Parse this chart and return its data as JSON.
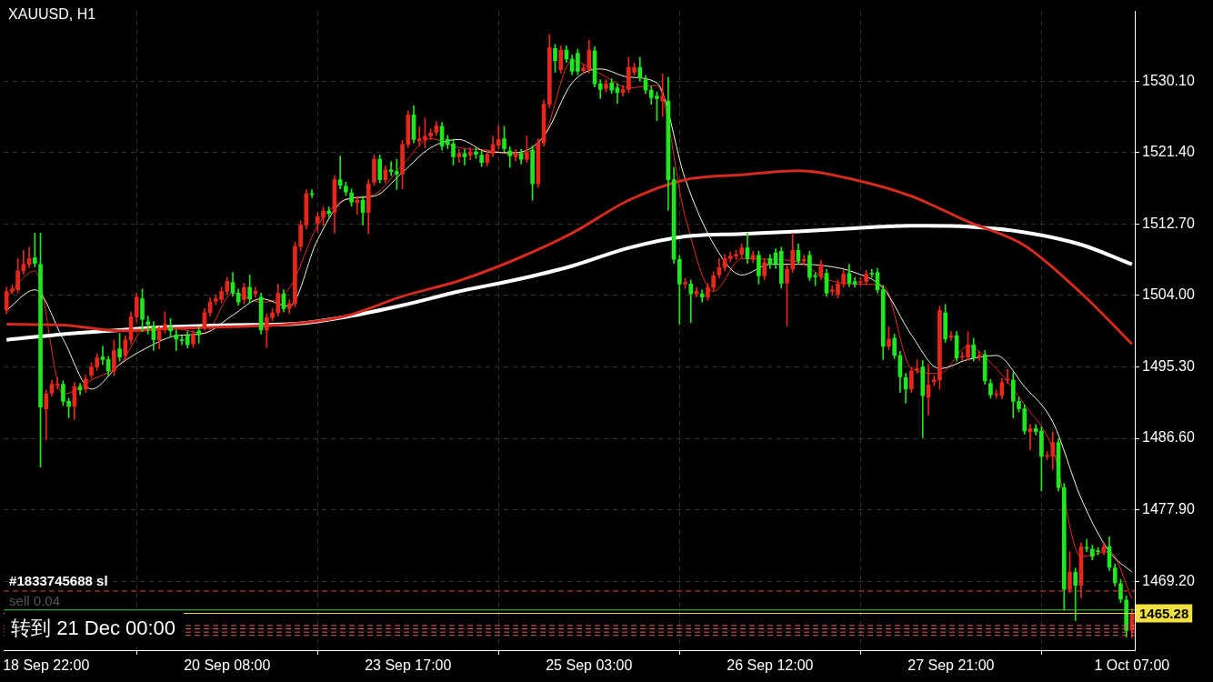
{
  "chart_data": {
    "type": "candlestick",
    "title": "XAUUSD, H1",
    "categories": [
      null,
      null,
      null,
      null,
      null,
      null,
      null,
      "18 Sep 22:00",
      null,
      null,
      null,
      null,
      null,
      null,
      null,
      null,
      null,
      null,
      null,
      null,
      null,
      null,
      null,
      null,
      null,
      null,
      null,
      null,
      null,
      null,
      null,
      null,
      null,
      null,
      null,
      null,
      null,
      null,
      null,
      "20 Sep 08:00",
      null,
      null,
      null,
      null,
      null,
      null,
      null,
      null,
      null,
      null,
      null,
      null,
      null,
      null,
      null,
      null,
      null,
      null,
      null,
      null,
      null,
      null,
      null,
      null,
      null,
      null,
      null,
      null,
      null,
      null,
      null,
      "23 Sep 17:00",
      null,
      null,
      null,
      null,
      null,
      null,
      null,
      null,
      null,
      null,
      null,
      null,
      null,
      null,
      null,
      null,
      null,
      null,
      null,
      null,
      null,
      null,
      null,
      null,
      null,
      null,
      null,
      null,
      null,
      null,
      null,
      "25 Sep 03:00",
      null,
      null,
      null,
      null,
      null,
      null,
      null,
      null,
      null,
      null,
      null,
      null,
      null,
      null,
      null,
      null,
      null,
      null,
      null,
      null,
      null,
      null,
      null,
      null,
      null,
      null,
      null,
      null,
      null,
      null,
      null,
      "26 Sep 12:00",
      null,
      null,
      null,
      null,
      null,
      null,
      null,
      null,
      null,
      null,
      null,
      null,
      null,
      null,
      null,
      null,
      null,
      null,
      null,
      null,
      null,
      null,
      null,
      null,
      null,
      null,
      null,
      null,
      null,
      null,
      null,
      "27 Sep 21:00",
      null,
      null,
      null,
      null,
      null,
      null,
      null,
      null,
      null,
      null,
      null,
      null,
      null,
      null,
      null,
      null,
      null,
      null,
      null,
      null,
      null,
      null,
      null,
      null,
      null,
      null,
      null,
      null,
      null,
      null,
      null,
      "1 Oct 07:00"
    ],
    "ohlc": [
      [
        1502.2,
        1505.0,
        1501.8,
        1504.5
      ],
      [
        1504.5,
        1505.3,
        1504.2,
        1504.8
      ],
      [
        1504.7,
        1508.5,
        1504.3,
        1507.0
      ],
      [
        1507.0,
        1509.5,
        1506.6,
        1507.8
      ],
      [
        1507.8,
        1509.9,
        1507.4,
        1508.5
      ],
      [
        1508.6,
        1511.6,
        1507.5,
        1507.9
      ],
      [
        1507.8,
        1511.6,
        1483.1,
        1490.4
      ],
      [
        1490.2,
        1492.5,
        1486.4,
        1492.0
      ],
      [
        1492.1,
        1493.7,
        1491.7,
        1493.2
      ],
      [
        1493.1,
        1494.0,
        1492.6,
        1493.2
      ],
      [
        1493.2,
        1493.6,
        1490.6,
        1491.1
      ],
      [
        1491.1,
        1491.5,
        1489.1,
        1490.5
      ],
      [
        1490.5,
        1493.4,
        1488.9,
        1492.9
      ],
      [
        1492.9,
        1493.3,
        1491.9,
        1492.5
      ],
      [
        1492.6,
        1494.3,
        1492.2,
        1493.8
      ],
      [
        1494.3,
        1495.8,
        1493.9,
        1495.3
      ],
      [
        1495.3,
        1496.9,
        1494.9,
        1496.4
      ],
      [
        1496.5,
        1497.8,
        1495.6,
        1496.2
      ],
      [
        1496.2,
        1496.6,
        1494.2,
        1494.8
      ],
      [
        1494.8,
        1498.6,
        1494.3,
        1497.3
      ],
      [
        1497.5,
        1499.4,
        1496.0,
        1496.5
      ],
      [
        1496.7,
        1499.1,
        1496.2,
        1498.6
      ],
      [
        1498.6,
        1502.0,
        1498.1,
        1501.4
      ],
      [
        1501.4,
        1504.3,
        1500.8,
        1503.8
      ],
      [
        1503.6,
        1504.8,
        1499.6,
        1501.1
      ],
      [
        1500.8,
        1501.5,
        1499.3,
        1500.5
      ],
      [
        1500.3,
        1500.8,
        1497.3,
        1498.6
      ],
      [
        1498.6,
        1500.2,
        1497.5,
        1499.7
      ],
      [
        1499.8,
        1502.0,
        1499.4,
        1500.5
      ],
      [
        1500.2,
        1501.2,
        1498.9,
        1499.7
      ],
      [
        1499.2,
        1499.8,
        1497.3,
        1498.7
      ],
      [
        1498.6,
        1499.1,
        1498.0,
        1498.5
      ],
      [
        1499.1,
        1499.6,
        1497.6,
        1498.0
      ],
      [
        1498.1,
        1499.7,
        1497.7,
        1499.2
      ],
      [
        1499.7,
        1500.2,
        1498.2,
        1499.2
      ],
      [
        1500.2,
        1502.4,
        1499.8,
        1501.9
      ],
      [
        1501.9,
        1503.7,
        1501.5,
        1503.2
      ],
      [
        1503.3,
        1504.1,
        1502.9,
        1503.6
      ],
      [
        1503.5,
        1505.0,
        1503.1,
        1504.5
      ],
      [
        1504.5,
        1506.2,
        1504.1,
        1505.7
      ],
      [
        1505.6,
        1506.8,
        1503.9,
        1504.3
      ],
      [
        1504.3,
        1504.8,
        1502.8,
        1503.2
      ],
      [
        1503.5,
        1505.5,
        1503.0,
        1505.0
      ],
      [
        1505.0,
        1506.5,
        1503.1,
        1503.6
      ],
      [
        1504.2,
        1505.0,
        1503.8,
        1504.5
      ],
      [
        1503.8,
        1504.3,
        1499.3,
        1499.8
      ],
      [
        1499.8,
        1501.8,
        1497.7,
        1501.3
      ],
      [
        1501.3,
        1502.4,
        1500.9,
        1501.9
      ],
      [
        1501.9,
        1505.4,
        1501.5,
        1504.3
      ],
      [
        1504.2,
        1504.7,
        1502.0,
        1502.4
      ],
      [
        1502.4,
        1503.5,
        1501.8,
        1503.0
      ],
      [
        1503.0,
        1510.5,
        1502.6,
        1510.0
      ],
      [
        1510.0,
        1513.1,
        1509.4,
        1512.6
      ],
      [
        1512.6,
        1516.9,
        1512.1,
        1516.4
      ],
      [
        1516.4,
        1516.9,
        1515.9,
        1516.3
      ],
      [
        1512.8,
        1514.1,
        1511.8,
        1513.6
      ],
      [
        1513.5,
        1514.8,
        1512.5,
        1514.3
      ],
      [
        1514.3,
        1514.8,
        1513.6,
        1514.0
      ],
      [
        1514.1,
        1518.6,
        1511.6,
        1518.1
      ],
      [
        1518.1,
        1521.0,
        1517.0,
        1517.4
      ],
      [
        1517.3,
        1517.8,
        1516.2,
        1516.6
      ],
      [
        1516.5,
        1517.0,
        1514.9,
        1515.4
      ],
      [
        1515.3,
        1516.1,
        1513.9,
        1515.6
      ],
      [
        1515.6,
        1516.1,
        1512.6,
        1514.1
      ],
      [
        1514.1,
        1518.1,
        1511.5,
        1517.6
      ],
      [
        1517.8,
        1521.1,
        1517.4,
        1520.6
      ],
      [
        1520.6,
        1521.1,
        1517.7,
        1518.1
      ],
      [
        1518.1,
        1519.8,
        1517.7,
        1519.3
      ],
      [
        1519.3,
        1520.3,
        1518.6,
        1519.1
      ],
      [
        1519.1,
        1520.6,
        1516.9,
        1518.8
      ],
      [
        1518.8,
        1522.9,
        1517.0,
        1522.4
      ],
      [
        1522.4,
        1526.5,
        1522.0,
        1526.0
      ],
      [
        1526.0,
        1527.1,
        1522.6,
        1523.0
      ],
      [
        1522.8,
        1524.6,
        1522.2,
        1523.1
      ],
      [
        1523.0,
        1525.6,
        1522.0,
        1523.4
      ],
      [
        1523.4,
        1524.3,
        1523.0,
        1523.8
      ],
      [
        1523.9,
        1525.2,
        1523.5,
        1524.7
      ],
      [
        1524.6,
        1525.1,
        1521.7,
        1522.2
      ],
      [
        1523.0,
        1523.5,
        1521.9,
        1522.4
      ],
      [
        1522.5,
        1523.0,
        1519.9,
        1520.9
      ],
      [
        1520.9,
        1521.8,
        1520.2,
        1521.3
      ],
      [
        1521.3,
        1521.8,
        1519.9,
        1520.9
      ],
      [
        1521.1,
        1522.0,
        1520.5,
        1521.5
      ],
      [
        1521.5,
        1522.0,
        1520.7,
        1521.2
      ],
      [
        1521.1,
        1521.6,
        1519.7,
        1520.2
      ],
      [
        1520.2,
        1521.7,
        1519.8,
        1521.2
      ],
      [
        1521.3,
        1523.4,
        1520.9,
        1522.4
      ],
      [
        1522.3,
        1524.7,
        1521.9,
        1523.0
      ],
      [
        1523.1,
        1524.6,
        1521.5,
        1521.9
      ],
      [
        1521.6,
        1522.1,
        1519.6,
        1521.0
      ],
      [
        1520.9,
        1521.8,
        1520.4,
        1521.3
      ],
      [
        1521.3,
        1521.8,
        1520.0,
        1520.6
      ],
      [
        1520.6,
        1523.4,
        1520.2,
        1521.4
      ],
      [
        1521.7,
        1522.2,
        1515.6,
        1517.6
      ],
      [
        1517.6,
        1523.1,
        1517.2,
        1522.6
      ],
      [
        1522.6,
        1527.8,
        1522.2,
        1527.3
      ],
      [
        1527.3,
        1535.8,
        1526.9,
        1534.2
      ],
      [
        1534.1,
        1534.6,
        1531.2,
        1532.6
      ],
      [
        1531.5,
        1534.4,
        1531.1,
        1533.9
      ],
      [
        1533.9,
        1534.4,
        1532.4,
        1532.8
      ],
      [
        1532.8,
        1533.3,
        1530.9,
        1531.3
      ],
      [
        1533.5,
        1534.0,
        1530.9,
        1531.3
      ],
      [
        1531.4,
        1532.2,
        1531.0,
        1531.7
      ],
      [
        1531.5,
        1535.1,
        1531.1,
        1533.9
      ],
      [
        1533.8,
        1534.3,
        1529.4,
        1529.8
      ],
      [
        1529.8,
        1530.3,
        1528.0,
        1529.1
      ],
      [
        1529.2,
        1530.3,
        1528.8,
        1529.8
      ],
      [
        1529.9,
        1530.4,
        1528.6,
        1529.0
      ],
      [
        1529.3,
        1529.8,
        1527.4,
        1528.7
      ],
      [
        1528.7,
        1529.6,
        1528.3,
        1529.1
      ],
      [
        1529.1,
        1533.0,
        1528.7,
        1531.8
      ],
      [
        1531.2,
        1532.3,
        1530.8,
        1531.8
      ],
      [
        1531.8,
        1533.0,
        1530.1,
        1530.5
      ],
      [
        1530.3,
        1530.8,
        1528.6,
        1529.0
      ],
      [
        1529.0,
        1529.5,
        1527.3,
        1528.1
      ],
      [
        1528.3,
        1528.8,
        1525.3,
        1528.0
      ],
      [
        1527.7,
        1531.0,
        1525.8,
        1528.3
      ],
      [
        1527.7,
        1530.6,
        1514.4,
        1518.1
      ],
      [
        1518.1,
        1519.6,
        1507.9,
        1508.4
      ],
      [
        1508.4,
        1508.9,
        1500.5,
        1505.4
      ],
      [
        1505.4,
        1506.1,
        1504.9,
        1505.6
      ],
      [
        1505.4,
        1505.9,
        1500.7,
        1504.2
      ],
      [
        1504.2,
        1505.0,
        1503.8,
        1504.5
      ],
      [
        1504.2,
        1504.7,
        1503.2,
        1503.8
      ],
      [
        1503.8,
        1505.5,
        1503.4,
        1505.0
      ],
      [
        1505.0,
        1506.9,
        1504.6,
        1506.4
      ],
      [
        1506.5,
        1508.5,
        1506.1,
        1507.4
      ],
      [
        1507.4,
        1509.0,
        1507.0,
        1508.5
      ],
      [
        1508.5,
        1509.3,
        1508.1,
        1508.8
      ],
      [
        1508.8,
        1509.5,
        1508.4,
        1509.0
      ],
      [
        1509.0,
        1510.3,
        1508.6,
        1509.8
      ],
      [
        1509.8,
        1511.6,
        1507.9,
        1508.5
      ],
      [
        1508.4,
        1509.4,
        1508.0,
        1508.9
      ],
      [
        1508.9,
        1509.4,
        1505.4,
        1506.4
      ],
      [
        1506.4,
        1508.5,
        1505.9,
        1508.0
      ],
      [
        1508.5,
        1509.0,
        1507.3,
        1507.8
      ],
      [
        1509.2,
        1509.7,
        1507.3,
        1507.9
      ],
      [
        1509.4,
        1509.9,
        1504.9,
        1505.5
      ],
      [
        1505.5,
        1507.7,
        1500.3,
        1507.2
      ],
      [
        1507.2,
        1511.6,
        1506.8,
        1509.5
      ],
      [
        1509.5,
        1510.3,
        1507.8,
        1508.2
      ],
      [
        1508.2,
        1508.9,
        1507.7,
        1508.4
      ],
      [
        1508.9,
        1509.4,
        1505.8,
        1506.2
      ],
      [
        1506.4,
        1506.8,
        1505.2,
        1506.3
      ],
      [
        1506.3,
        1508.3,
        1505.9,
        1507.8
      ],
      [
        1506.7,
        1507.2,
        1503.9,
        1504.3
      ],
      [
        1504.5,
        1505.2,
        1504.1,
        1504.7
      ],
      [
        1504.1,
        1505.9,
        1503.7,
        1505.4
      ],
      [
        1505.4,
        1507.1,
        1505.0,
        1506.6
      ],
      [
        1506.7,
        1507.8,
        1505.1,
        1505.5
      ],
      [
        1505.7,
        1506.2,
        1505.0,
        1505.4
      ],
      [
        1505.6,
        1506.2,
        1505.2,
        1505.7
      ],
      [
        1505.7,
        1507.1,
        1505.3,
        1506.6
      ],
      [
        1506.7,
        1507.2,
        1506.2,
        1506.6
      ],
      [
        1506.8,
        1507.3,
        1504.3,
        1504.7
      ],
      [
        1504.7,
        1505.2,
        1496.2,
        1497.8
      ],
      [
        1497.8,
        1500.2,
        1497.4,
        1498.7
      ],
      [
        1498.8,
        1499.3,
        1496.3,
        1496.7
      ],
      [
        1496.7,
        1497.2,
        1492.2,
        1494.1
      ],
      [
        1494.0,
        1494.5,
        1490.9,
        1492.6
      ],
      [
        1492.6,
        1495.3,
        1492.2,
        1494.8
      ],
      [
        1494.9,
        1496.2,
        1494.5,
        1495.1
      ],
      [
        1495.3,
        1496.1,
        1486.7,
        1491.8
      ],
      [
        1491.6,
        1495.6,
        1489.4,
        1493.1
      ],
      [
        1493.5,
        1494.2,
        1493.0,
        1493.7
      ],
      [
        1493.7,
        1502.7,
        1492.6,
        1502.2
      ],
      [
        1501.9,
        1502.9,
        1498.3,
        1498.7
      ],
      [
        1498.9,
        1499.6,
        1498.5,
        1499.1
      ],
      [
        1499.1,
        1499.6,
        1496.0,
        1496.4
      ],
      [
        1496.5,
        1497.1,
        1496.1,
        1496.6
      ],
      [
        1496.5,
        1499.6,
        1496.1,
        1498.0
      ],
      [
        1498.0,
        1498.8,
        1496.0,
        1496.4
      ],
      [
        1496.5,
        1497.2,
        1496.1,
        1496.7
      ],
      [
        1496.8,
        1497.3,
        1493.2,
        1493.6
      ],
      [
        1493.3,
        1493.8,
        1491.5,
        1491.9
      ],
      [
        1491.9,
        1492.5,
        1491.5,
        1492.0
      ],
      [
        1491.8,
        1493.9,
        1491.4,
        1493.4
      ],
      [
        1493.7,
        1495.0,
        1493.3,
        1493.8
      ],
      [
        1493.7,
        1494.6,
        1489.1,
        1491.1
      ],
      [
        1491.1,
        1491.6,
        1489.8,
        1490.2
      ],
      [
        1490.2,
        1490.7,
        1487.1,
        1487.5
      ],
      [
        1487.4,
        1488.3,
        1485.2,
        1487.8
      ],
      [
        1487.8,
        1488.3,
        1487.0,
        1487.4
      ],
      [
        1487.5,
        1488.0,
        1480.2,
        1484.4
      ],
      [
        1484.4,
        1485.0,
        1484.0,
        1484.5
      ],
      [
        1484.4,
        1487.4,
        1482.8,
        1486.1
      ],
      [
        1486.1,
        1486.6,
        1480.2,
        1480.6
      ],
      [
        1480.6,
        1481.1,
        1465.7,
        1468.2
      ],
      [
        1468.2,
        1472.8,
        1467.8,
        1470.3
      ],
      [
        1470.3,
        1470.8,
        1464.4,
        1468.7
      ],
      [
        1468.7,
        1473.9,
        1467.2,
        1473.4
      ],
      [
        1473.3,
        1474.3,
        1472.8,
        1473.2
      ],
      [
        1473.1,
        1473.6,
        1471.8,
        1472.2
      ],
      [
        1472.9,
        1473.3,
        1472.4,
        1472.8
      ],
      [
        1472.8,
        1473.9,
        1472.4,
        1473.4
      ],
      [
        1473.4,
        1474.6,
        1470.5,
        1470.9
      ],
      [
        1470.8,
        1471.3,
        1468.6,
        1469.0
      ],
      [
        1468.9,
        1469.4,
        1466.6,
        1467.0
      ],
      [
        1466.9,
        1467.4,
        1462.4,
        1463.2
      ],
      [
        1463.2,
        1465.9,
        1462.3,
        1465.3
      ]
    ],
    "colors": [
      "#e8271c",
      "#e8271c",
      "#e8271c",
      "#e8271c",
      "#e8271c",
      "#1ee81e",
      "#1ee81e",
      "#e8271c",
      "#e8271c",
      "#e8271c",
      "#1ee81e",
      "#1ee81e",
      "#e8271c",
      "#1ee81e",
      "#e8271c",
      "#e8271c",
      "#e8271c",
      "#1ee81e",
      "#1ee81e",
      "#e8271c",
      "#1ee81e",
      "#e8271c",
      "#e8271c",
      "#e8271c",
      "#1ee81e",
      "#1ee81e",
      "#1ee81e",
      "#e8271c",
      "#e8271c",
      "#1ee81e",
      "#1ee81e",
      "#1ee81e",
      "#1ee81e",
      "#e8271c",
      "#1ee81e",
      "#e8271c",
      "#e8271c",
      "#e8271c",
      "#e8271c",
      "#e8271c",
      "#1ee81e",
      "#1ee81e",
      "#e8271c",
      "#1ee81e",
      "#e8271c",
      "#1ee81e",
      "#e8271c",
      "#e8271c",
      "#e8271c",
      "#1ee81e",
      "#e8271c",
      "#e8271c",
      "#e8271c",
      "#e8271c",
      "#1ee81e",
      "#e8271c",
      "#e8271c",
      "#1ee81e",
      "#e8271c",
      "#1ee81e",
      "#1ee81e",
      "#1ee81e",
      "#e8271c",
      "#1ee81e",
      "#e8271c",
      "#e8271c",
      "#1ee81e",
      "#e8271c",
      "#1ee81e",
      "#1ee81e",
      "#e8271c",
      "#e8271c",
      "#1ee81e",
      "#e8271c",
      "#e8271c",
      "#e8271c",
      "#e8271c",
      "#1ee81e",
      "#1ee81e",
      "#1ee81e",
      "#e8271c",
      "#1ee81e",
      "#e8271c",
      "#1ee81e",
      "#1ee81e",
      "#e8271c",
      "#e8271c",
      "#e8271c",
      "#1ee81e",
      "#1ee81e",
      "#e8271c",
      "#1ee81e",
      "#e8271c",
      "#1ee81e",
      "#e8271c",
      "#e8271c",
      "#e8271c",
      "#1ee81e",
      "#e8271c",
      "#1ee81e",
      "#1ee81e",
      "#1ee81e",
      "#e8271c",
      "#e8271c",
      "#1ee81e",
      "#1ee81e",
      "#e8271c",
      "#1ee81e",
      "#1ee81e",
      "#e8271c",
      "#e8271c",
      "#e8271c",
      "#1ee81e",
      "#1ee81e",
      "#1ee81e",
      "#1ee81e",
      "#e8271c",
      "#1ee81e",
      "#1ee81e",
      "#1ee81e",
      "#e8271c",
      "#1ee81e",
      "#e8271c",
      "#1ee81e",
      "#e8271c",
      "#e8271c",
      "#e8271c",
      "#e8271c",
      "#e8271c",
      "#e8271c",
      "#e8271c",
      "#1ee81e",
      "#e8271c",
      "#1ee81e",
      "#e8271c",
      "#1ee81e",
      "#1ee81e",
      "#1ee81e",
      "#e8271c",
      "#e8271c",
      "#1ee81e",
      "#e8271c",
      "#1ee81e",
      "#1ee81e",
      "#e8271c",
      "#1ee81e",
      "#e8271c",
      "#e8271c",
      "#e8271c",
      "#1ee81e",
      "#1ee81e",
      "#e8271c",
      "#e8271c",
      "#1ee81e",
      "#1ee81e",
      "#1ee81e",
      "#e8271c",
      "#1ee81e",
      "#1ee81e",
      "#1ee81e",
      "#e8271c",
      "#e8271c",
      "#1ee81e",
      "#e8271c",
      "#e8271c",
      "#e8271c",
      "#1ee81e",
      "#e8271c",
      "#1ee81e",
      "#e8271c",
      "#e8271c",
      "#1ee81e",
      "#e8271c",
      "#1ee81e",
      "#1ee81e",
      "#e8271c",
      "#e8271c",
      "#e8271c",
      "#1ee81e",
      "#1ee81e",
      "#1ee81e",
      "#e8271c",
      "#1ee81e",
      "#1ee81e",
      "#e8271c",
      "#e8271c",
      "#1ee81e",
      "#1ee81e",
      "#e8271c",
      "#1ee81e",
      "#e8271c",
      "#1ee81e",
      "#1ee81e",
      "#1ee81e",
      "#e8271c",
      "#1ee81e",
      "#1ee81e",
      "#1ee81e",
      "#1ee81e",
      "#e8271c"
    ],
    "series": [
      {
        "type": "line",
        "color": "#d42a1f",
        "values": [
          1500.5,
          null,
          null,
          null,
          null,
          null,
          null,
          null,
          null,
          null,
          1500.4,
          null,
          null,
          null,
          null,
          null,
          null,
          null,
          null,
          null,
          1499.7,
          null,
          null,
          null,
          null,
          null,
          null,
          null,
          null,
          null,
          1500.0,
          null,
          null,
          null,
          null,
          null,
          null,
          null,
          null,
          null,
          1500.2,
          null,
          null,
          null,
          null,
          null,
          null,
          null,
          null,
          null,
          1500.5,
          null,
          null,
          null,
          null,
          null,
          null,
          null,
          null,
          null,
          1501.5,
          null,
          null,
          null,
          null,
          null,
          null,
          null,
          null,
          null,
          1503.9,
          null,
          null,
          null,
          null,
          null,
          null,
          null,
          null,
          null,
          1505.8,
          null,
          null,
          null,
          null,
          null,
          null,
          null,
          null,
          null,
          1508.4,
          null,
          null,
          null,
          null,
          null,
          null,
          null,
          null,
          null,
          1511.6,
          null,
          null,
          null,
          null,
          null,
          null,
          null,
          null,
          null,
          1515.6,
          null,
          null,
          null,
          null,
          null,
          null,
          null,
          null,
          null,
          1518.1,
          null,
          null,
          null,
          null,
          null,
          null,
          null,
          null,
          null,
          1518.7,
          null,
          null,
          null,
          null,
          null,
          null,
          null,
          null,
          null,
          1519.2,
          null,
          null,
          null,
          null,
          null,
          null,
          null,
          null,
          null,
          1518.1,
          null,
          null,
          null,
          null,
          null,
          null,
          null,
          null,
          null,
          1516.1,
          null,
          null,
          null,
          null,
          null,
          null,
          null,
          null,
          null,
          1513.0,
          null,
          null,
          null,
          null,
          null,
          null,
          null,
          null,
          null,
          1510.1,
          null,
          null,
          null,
          null,
          null,
          null,
          null,
          null,
          null,
          1504.3,
          null,
          null,
          null,
          null,
          null,
          null,
          null,
          null,
          1498.1
        ]
      },
      {
        "type": "line",
        "color": "#ffffff",
        "values": [
          1498.6,
          null,
          null,
          null,
          null,
          null,
          null,
          null,
          null,
          null,
          1499.3,
          null,
          null,
          null,
          null,
          null,
          null,
          null,
          null,
          null,
          1499.8,
          null,
          null,
          null,
          null,
          null,
          null,
          null,
          null,
          null,
          1500.2,
          null,
          null,
          null,
          null,
          null,
          null,
          null,
          null,
          null,
          1500.4,
          null,
          null,
          null,
          null,
          null,
          null,
          null,
          null,
          null,
          1500.5,
          null,
          null,
          null,
          null,
          null,
          null,
          null,
          null,
          null,
          1501.4,
          null,
          null,
          null,
          null,
          null,
          null,
          null,
          null,
          null,
          1502.8,
          null,
          null,
          null,
          null,
          null,
          null,
          null,
          null,
          null,
          1504.5,
          null,
          null,
          null,
          null,
          null,
          null,
          null,
          null,
          null,
          1505.9,
          null,
          null,
          null,
          null,
          null,
          null,
          null,
          null,
          null,
          1507.6,
          null,
          null,
          null,
          null,
          null,
          null,
          null,
          null,
          null,
          1509.8,
          null,
          null,
          null,
          null,
          null,
          null,
          null,
          null,
          null,
          1511.2,
          null,
          null,
          null,
          null,
          null,
          null,
          null,
          null,
          null,
          1511.5,
          null,
          null,
          null,
          null,
          null,
          null,
          null,
          null,
          null,
          1511.8,
          null,
          null,
          null,
          null,
          null,
          null,
          null,
          null,
          null,
          1512.2,
          null,
          null,
          null,
          null,
          null,
          null,
          null,
          null,
          null,
          1512.5,
          null,
          null,
          null,
          null,
          null,
          null,
          null,
          null,
          null,
          1512.4,
          null,
          null,
          null,
          null,
          null,
          null,
          null,
          null,
          null,
          1511.7,
          null,
          null,
          null,
          null,
          null,
          null,
          null,
          null,
          null,
          1510.2,
          null,
          null,
          null,
          null,
          null,
          null,
          null,
          null,
          1507.8
        ]
      },
      {
        "type": "line",
        "color": "#f4f4dc",
        "values": [
          1502.2,
          null,
          null,
          null,
          null,
          1504.7,
          null,
          null,
          null,
          null,
          1498.7,
          null,
          null,
          null,
          null,
          1492.6,
          null,
          null,
          null,
          null,
          1495.6,
          null,
          null,
          null,
          null,
          1497.7,
          null,
          null,
          null,
          null,
          1499.1,
          null,
          null,
          null,
          null,
          1499.4,
          null,
          null,
          null,
          null,
          1501.6,
          null,
          null,
          null,
          null,
          1503.6,
          null,
          null,
          null,
          null,
          1502.7,
          null,
          null,
          null,
          null,
          1510.8,
          null,
          null,
          null,
          null,
          1515.7,
          null,
          null,
          null,
          null,
          1516.1,
          null,
          null,
          null,
          null,
          1519.0,
          null,
          null,
          null,
          null,
          1522.0,
          null,
          null,
          null,
          null,
          1523.0,
          null,
          null,
          null,
          null,
          1521.5,
          null,
          null,
          null,
          null,
          1521.4,
          null,
          null,
          null,
          null,
          1523.4,
          null,
          null,
          null,
          null,
          1529.9,
          null,
          null,
          null,
          null,
          1531.6,
          null,
          null,
          null,
          null,
          1530.6,
          null,
          null,
          null,
          null,
          1529.9,
          null,
          null,
          null,
          null,
          1518.2,
          null,
          null,
          null,
          null,
          1510.3,
          null,
          null,
          null,
          null,
          1506.5,
          null,
          null,
          null,
          null,
          1507.8,
          null,
          null,
          null,
          null,
          1507.8,
          null,
          null,
          null,
          null,
          1507.6,
          null,
          null,
          null,
          null,
          1506.8,
          null,
          null,
          null,
          null,
          1504.9,
          null,
          null,
          null,
          null,
          1499.2,
          null,
          null,
          null,
          null,
          1495.1,
          null,
          null,
          null,
          null,
          1496.2,
          null,
          null,
          null,
          null,
          1496.7,
          null,
          null,
          null,
          null,
          1492.9,
          null,
          null,
          null,
          null,
          1488.6,
          null,
          null,
          null,
          null,
          1479.3,
          null,
          null,
          null,
          null,
          1472.8,
          null,
          null,
          null,
          1470.3
        ]
      },
      {
        "type": "line",
        "color": "#e0301e",
        "values": [
          1503.8,
          null,
          null,
          null,
          null,
          1507.0,
          null,
          null,
          null,
          null,
          1492.0,
          null,
          null,
          null,
          null,
          1493.7,
          null,
          null,
          null,
          null,
          1495.6,
          null,
          null,
          null,
          null,
          1500.3,
          null,
          null,
          null,
          null,
          1500.0,
          null,
          null,
          null,
          null,
          1499.4,
          null,
          null,
          null,
          null,
          1504.3,
          null,
          null,
          null,
          null,
          1503.2,
          null,
          null,
          null,
          null,
          1504.9,
          null,
          null,
          null,
          null,
          1512.5,
          null,
          null,
          null,
          null,
          1515.7,
          null,
          null,
          null,
          null,
          1516.3,
          null,
          null,
          null,
          null,
          1519.9,
          null,
          null,
          null,
          null,
          1523.1,
          null,
          null,
          null,
          null,
          1522.0,
          null,
          null,
          null,
          null,
          1521.7,
          null,
          null,
          null,
          null,
          1521.2,
          null,
          null,
          null,
          null,
          1523.4,
          null,
          null,
          null,
          null,
          1532.6,
          null,
          null,
          null,
          null,
          1531.0,
          null,
          null,
          null,
          null,
          1529.3,
          null,
          null,
          null,
          null,
          1529.6,
          null,
          null,
          null,
          null,
          1513.6,
          null,
          null,
          null,
          null,
          1504.5,
          null,
          null,
          null,
          null,
          1508.5,
          null,
          null,
          null,
          null,
          1508.4,
          null,
          null,
          null,
          null,
          1508.1,
          null,
          null,
          null,
          null,
          1506.0,
          null,
          null,
          null,
          null,
          1505.4,
          null,
          null,
          null,
          null,
          1505.2,
          null,
          null,
          null,
          null,
          1495.1,
          null,
          null,
          null,
          null,
          1494.5,
          null,
          null,
          null,
          null,
          1497.8,
          null,
          null,
          null,
          null,
          1495.1,
          null,
          null,
          null,
          null,
          1490.7,
          null,
          null,
          null,
          null,
          1485.3,
          null,
          null,
          null,
          null,
          1472.2,
          null,
          null,
          null,
          null,
          1472.8,
          null,
          null,
          null,
          1467.1
        ]
      }
    ],
    "ylim": [
      1460.8,
      1538.6
    ],
    "yticks": [
      {
        "value": 1469.2,
        "label": "1469.20"
      },
      {
        "value": 1477.9,
        "label": "1477.90"
      },
      {
        "value": 1486.6,
        "label": "1486.60"
      },
      {
        "value": 1495.3,
        "label": "1495.30"
      },
      {
        "value": 1504.0,
        "label": "1504.00"
      },
      {
        "value": 1512.7,
        "label": "1512.70"
      },
      {
        "value": 1521.4,
        "label": "1521.40"
      },
      {
        "value": 1530.1,
        "label": "1530.10"
      }
    ],
    "grid": true,
    "ref_lines": [
      {
        "axis": "y",
        "value": 1468.0,
        "label": "#1833745688 sl",
        "color": "#e04040",
        "line_style": "dashed"
      },
      {
        "axis": "y",
        "value": 1465.7,
        "color": "#3cc83c",
        "line_style": "solid"
      },
      {
        "axis": "y",
        "value": 1465.28,
        "label": "1465.28",
        "color": "#f0e040",
        "line_style": "solid"
      },
      {
        "axis": "y",
        "value": 1463.8,
        "color": "#e06060",
        "line_style": "dashed"
      },
      {
        "axis": "y",
        "value": 1463.4,
        "color": "#e06060",
        "line_style": "dashed"
      },
      {
        "axis": "y",
        "value": 1463.0,
        "color": "#e06060",
        "line_style": "dashed"
      },
      {
        "axis": "y",
        "value": 1462.6,
        "color": "#e06060",
        "line_style": "dashed"
      }
    ],
    "annotations": [
      "sell 0.04",
      "转到 21 Dec 00:00"
    ]
  }
}
